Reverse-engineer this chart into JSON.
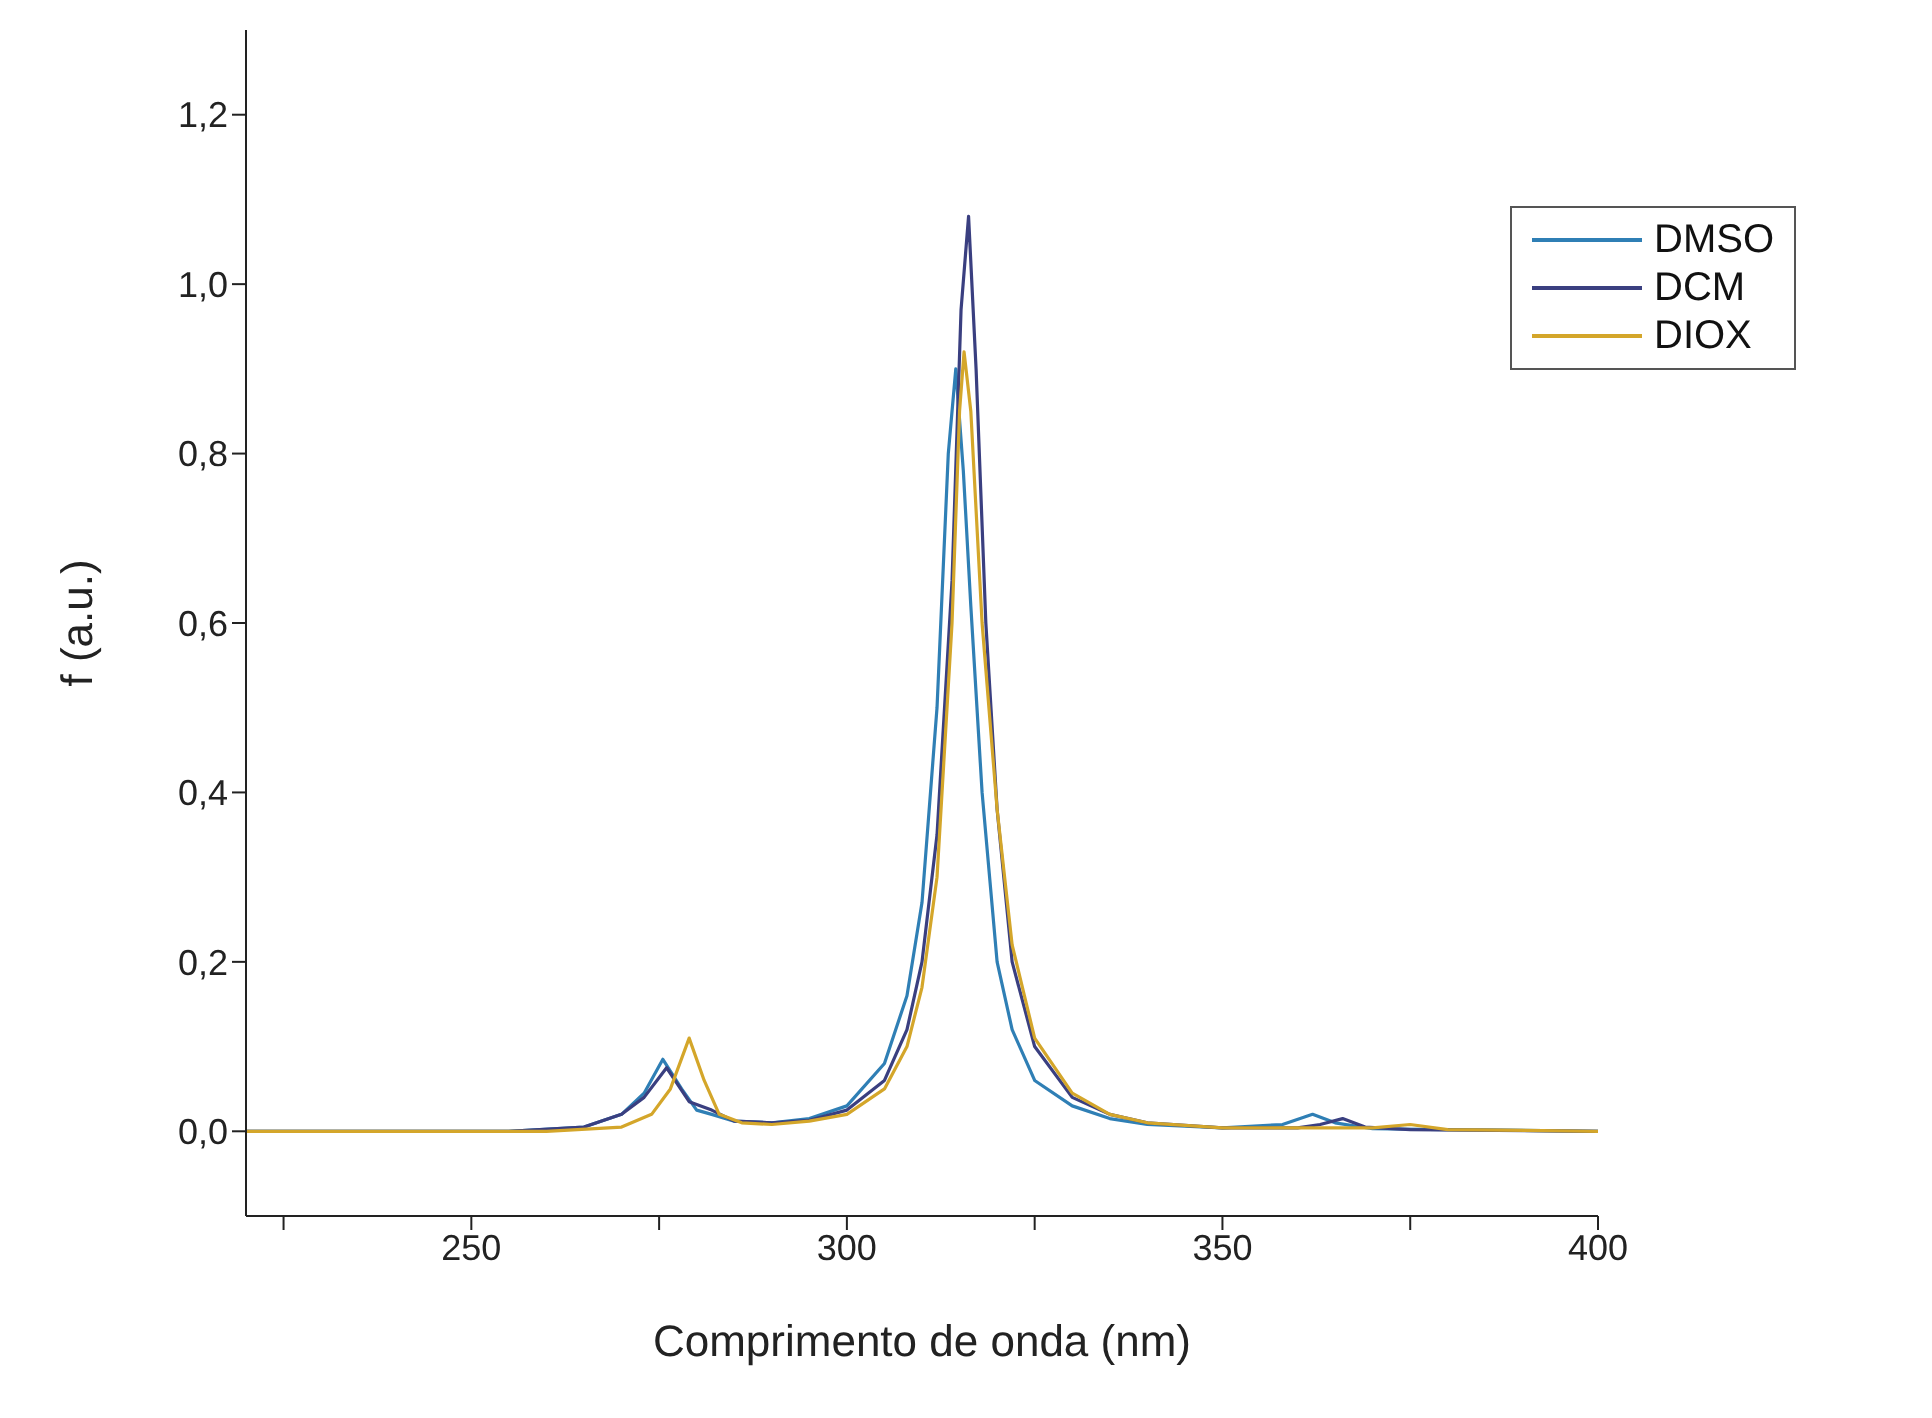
{
  "chart_data": {
    "type": "line",
    "xlabel": "Comprimento de onda (nm)",
    "ylabel": "f (a.u.)",
    "xlim": [
      220,
      400
    ],
    "xticks": [
      {
        "value": 225,
        "label": null
      },
      250,
      {
        "value": 275,
        "label": null
      },
      300,
      {
        "value": 325,
        "label": null
      },
      350,
      {
        "value": 375,
        "label": null
      },
      400
    ],
    "ylim": [
      -0.1,
      1.3
    ],
    "yticks": [
      {
        "value": 0,
        "label": "0,0"
      },
      {
        "value": 0.2,
        "label": "0,2"
      },
      {
        "value": 0.4,
        "label": "0,4"
      },
      {
        "value": 0.6,
        "label": "0,6"
      },
      {
        "value": 0.8,
        "label": "0,8"
      },
      {
        "value": 1.0,
        "label": "1,0"
      },
      {
        "value": 1.2,
        "label": "1,2"
      }
    ],
    "grid": false,
    "legend": "top right",
    "marker": "none",
    "line_style": "solid",
    "series": [
      {
        "name": "DMSO",
        "color": "#2f7fb5",
        "x": [
          220,
          255,
          265,
          270,
          273,
          275.5,
          278,
          280,
          282,
          285,
          290,
          295,
          300,
          305,
          308,
          310,
          312,
          313.5,
          314.5,
          315.5,
          316.5,
          318,
          320,
          322,
          325,
          330,
          335,
          340,
          350,
          358,
          362,
          365,
          370,
          380,
          400
        ],
        "values": [
          0,
          0,
          0.005,
          0.02,
          0.045,
          0.085,
          0.05,
          0.025,
          0.02,
          0.012,
          0.01,
          0.015,
          0.03,
          0.08,
          0.16,
          0.27,
          0.5,
          0.8,
          0.9,
          0.78,
          0.62,
          0.4,
          0.2,
          0.12,
          0.06,
          0.03,
          0.015,
          0.008,
          0.004,
          0.008,
          0.02,
          0.01,
          0.003,
          0.002,
          0
        ]
      },
      {
        "name": "DCM",
        "color": "#3a3f80",
        "x": [
          220,
          255,
          265,
          270,
          273,
          276,
          279,
          282,
          285,
          290,
          295,
          300,
          305,
          308,
          310,
          312,
          314,
          315.2,
          316.2,
          317.2,
          318.5,
          320,
          322,
          325,
          330,
          335,
          340,
          350,
          360,
          363,
          366,
          369,
          375,
          400
        ],
        "values": [
          0,
          0,
          0.005,
          0.02,
          0.04,
          0.075,
          0.035,
          0.025,
          0.012,
          0.01,
          0.013,
          0.025,
          0.06,
          0.12,
          0.2,
          0.35,
          0.65,
          0.97,
          1.08,
          0.9,
          0.6,
          0.38,
          0.2,
          0.1,
          0.04,
          0.02,
          0.01,
          0.004,
          0.004,
          0.008,
          0.015,
          0.005,
          0.002,
          0
        ]
      },
      {
        "name": "DIOX",
        "color": "#d4a62a",
        "x": [
          220,
          260,
          270,
          274,
          276.5,
          279,
          281,
          283,
          286,
          290,
          295,
          300,
          305,
          308,
          310,
          312,
          314,
          315,
          315.6,
          316.5,
          318,
          320,
          322,
          325,
          330,
          335,
          340,
          350,
          370,
          375,
          380,
          400
        ],
        "values": [
          0,
          0,
          0.005,
          0.02,
          0.05,
          0.11,
          0.06,
          0.02,
          0.01,
          0.008,
          0.012,
          0.02,
          0.05,
          0.1,
          0.17,
          0.3,
          0.6,
          0.85,
          0.92,
          0.85,
          0.6,
          0.38,
          0.22,
          0.11,
          0.045,
          0.02,
          0.01,
          0.004,
          0.004,
          0.008,
          0.002,
          0
        ]
      }
    ]
  }
}
